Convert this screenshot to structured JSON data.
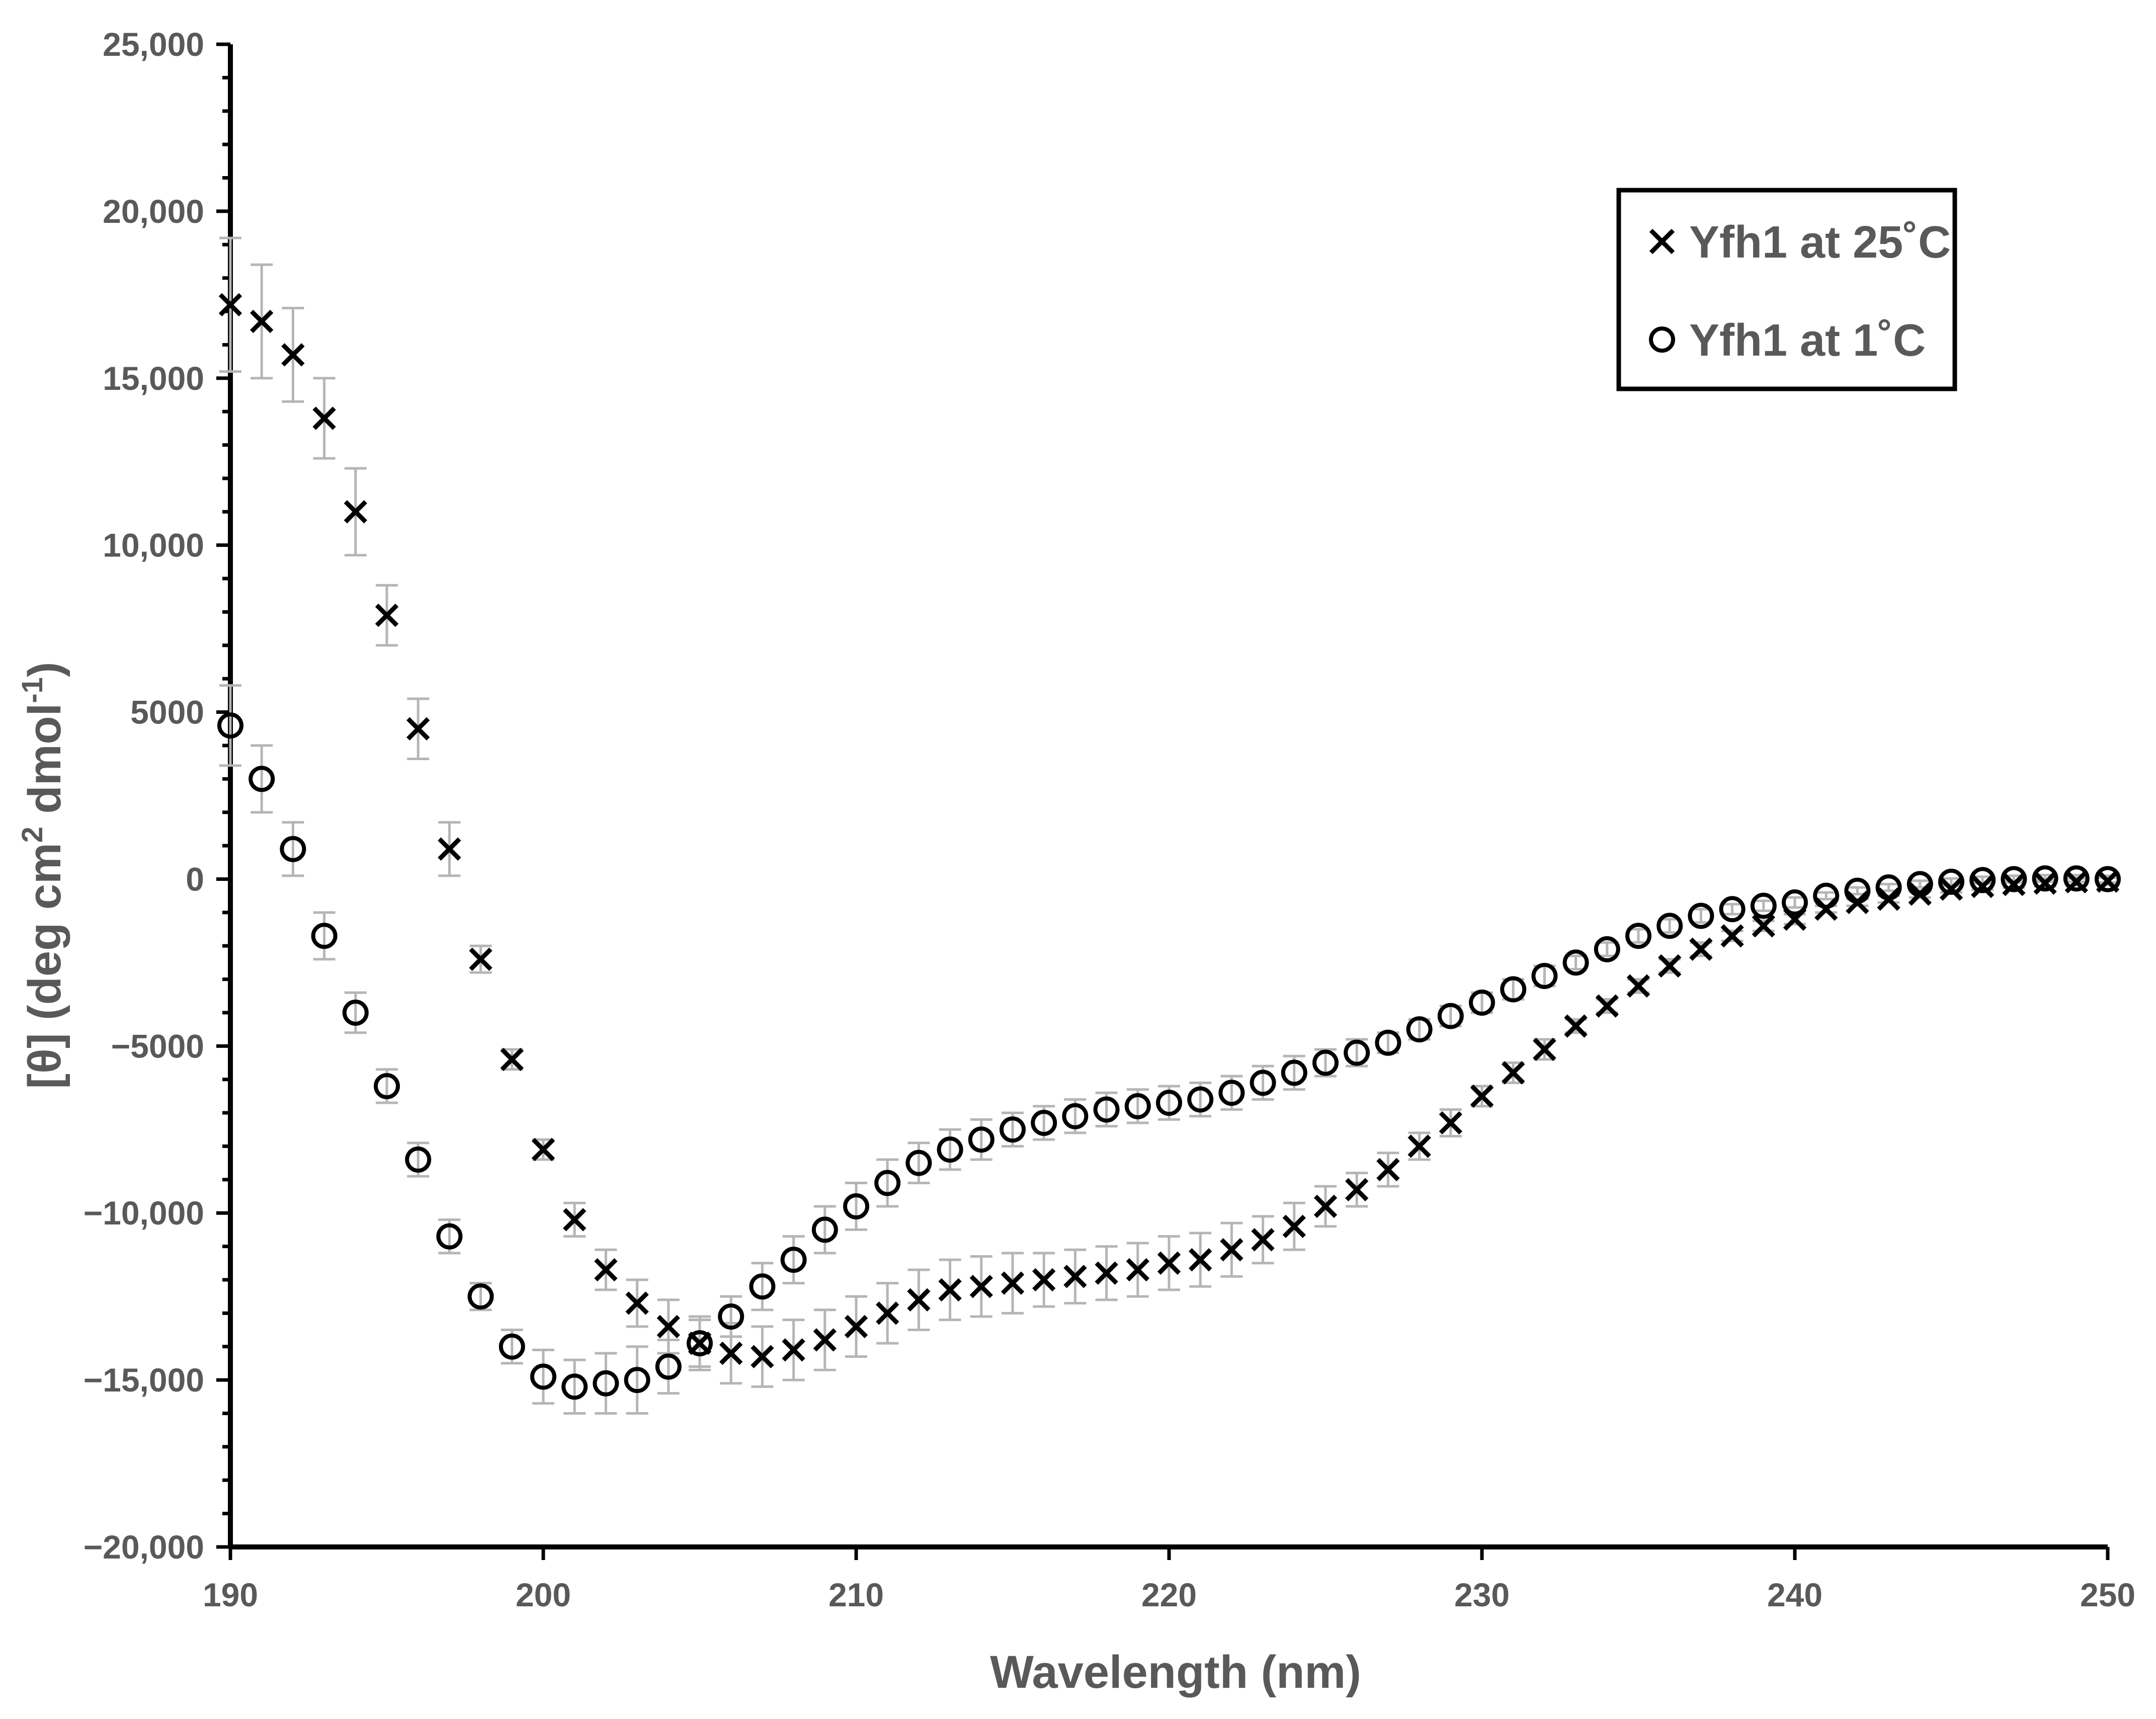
{
  "chart_data": {
    "type": "scatter",
    "title": "",
    "xlabel": "Wavelength (nm)",
    "ylabel_parts": {
      "main": "[θ] (deg cm",
      "sup1": "2",
      "mid": " dmol",
      "sup2": "-1",
      "end": ")"
    },
    "xlim": [
      190,
      250
    ],
    "ylim": [
      -20000,
      25000
    ],
    "x_ticks": [
      190,
      200,
      210,
      220,
      230,
      240,
      250
    ],
    "x_tick_labels": [
      "190",
      "200",
      "210",
      "220",
      "230",
      "240",
      "250"
    ],
    "y_ticks": [
      25000,
      20000,
      15000,
      10000,
      5000,
      0,
      -5000,
      -10000,
      -15000,
      -20000
    ],
    "y_tick_labels": [
      "25,000",
      "20,000",
      "15,000",
      "10,000",
      "5000",
      "0",
      "−5000",
      "−10,000",
      "−15,000",
      "−20,000"
    ],
    "y_minor_step": 1000,
    "grid": false,
    "legend_position": "top-right",
    "x": [
      190,
      191,
      192,
      193,
      194,
      195,
      196,
      197,
      198,
      199,
      200,
      201,
      202,
      203,
      204,
      205,
      206,
      207,
      208,
      209,
      210,
      211,
      212,
      213,
      214,
      215,
      216,
      217,
      218,
      219,
      220,
      221,
      222,
      223,
      224,
      225,
      226,
      227,
      228,
      229,
      230,
      231,
      232,
      233,
      234,
      235,
      236,
      237,
      238,
      239,
      240,
      241,
      242,
      243,
      244,
      245,
      246,
      247,
      248,
      249,
      250
    ],
    "series": [
      {
        "name": "Yfh1 at 25˚C",
        "marker": "x",
        "values": [
          17200,
          16700,
          15700,
          13800,
          11000,
          7900,
          4500,
          900,
          -2400,
          -5400,
          -8100,
          -10200,
          -11700,
          -12700,
          -13400,
          -13900,
          -14200,
          -14300,
          -14100,
          -13800,
          -13400,
          -13000,
          -12600,
          -12300,
          -12200,
          -12100,
          -12000,
          -11900,
          -11800,
          -11700,
          -11500,
          -11400,
          -11100,
          -10800,
          -10400,
          -9800,
          -9300,
          -8700,
          -8000,
          -7300,
          -6500,
          -5800,
          -5100,
          -4400,
          -3800,
          -3200,
          -2600,
          -2100,
          -1700,
          -1400,
          -1200,
          -900,
          -700,
          -600,
          -450,
          -300,
          -220,
          -160,
          -120,
          -80,
          -60
        ],
        "errors": [
          2000,
          1700,
          1400,
          1200,
          1300,
          900,
          900,
          800,
          400,
          300,
          300,
          500,
          600,
          700,
          800,
          800,
          900,
          900,
          900,
          900,
          900,
          900,
          900,
          900,
          900,
          900,
          800,
          800,
          800,
          800,
          800,
          800,
          800,
          700,
          700,
          600,
          500,
          500,
          400,
          400,
          300,
          300,
          300,
          200,
          200,
          200,
          200,
          200,
          150,
          150,
          150,
          100,
          100,
          100,
          100,
          100,
          100,
          100,
          100,
          100,
          100
        ]
      },
      {
        "name": "Yfh1 at 1˚C",
        "marker": "o",
        "values": [
          4600,
          3000,
          900,
          -1700,
          -4000,
          -6200,
          -8400,
          -10700,
          -12500,
          -14000,
          -14900,
          -15200,
          -15100,
          -15000,
          -14600,
          -13900,
          -13100,
          -12200,
          -11400,
          -10500,
          -9800,
          -9100,
          -8500,
          -8100,
          -7800,
          -7500,
          -7300,
          -7100,
          -6900,
          -6800,
          -6700,
          -6600,
          -6400,
          -6100,
          -5800,
          -5500,
          -5200,
          -4900,
          -4500,
          -4100,
          -3700,
          -3300,
          -2900,
          -2500,
          -2100,
          -1700,
          -1400,
          -1100,
          -900,
          -800,
          -700,
          -500,
          -350,
          -250,
          -150,
          -80,
          -30,
          0,
          20,
          20,
          0
        ],
        "errors": [
          1200,
          1000,
          800,
          700,
          600,
          500,
          500,
          500,
          400,
          500,
          800,
          800,
          900,
          1000,
          800,
          700,
          600,
          700,
          700,
          700,
          700,
          700,
          600,
          600,
          600,
          500,
          500,
          500,
          500,
          500,
          500,
          500,
          500,
          500,
          500,
          400,
          400,
          300,
          300,
          300,
          300,
          300,
          300,
          200,
          200,
          200,
          200,
          200,
          150,
          150,
          150,
          100,
          100,
          100,
          100,
          100,
          100,
          100,
          100,
          100,
          100
        ]
      }
    ]
  }
}
